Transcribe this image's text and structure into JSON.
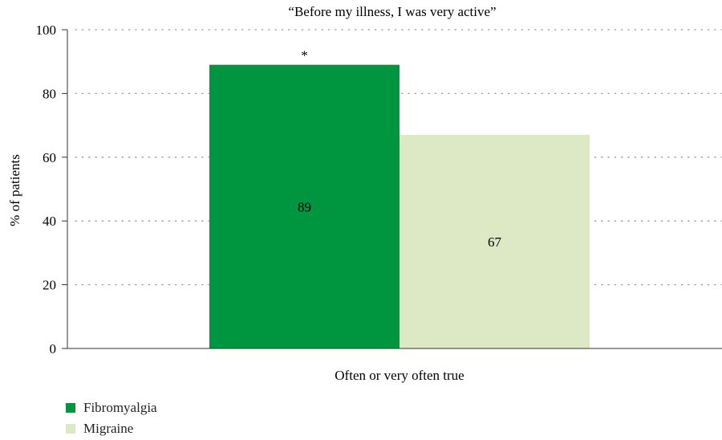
{
  "chart_data": {
    "type": "bar",
    "title": "“Before my illness, I was very active”",
    "categories": [
      "Often or very often true"
    ],
    "xlabel": "Often or very often true",
    "ylabel": "% of patients",
    "ylim": [
      0,
      100
    ],
    "yticks": [
      0,
      20,
      40,
      60,
      80,
      100
    ],
    "grid": true,
    "legend_position": "bottom-left",
    "series": [
      {
        "name": "Fibromyalgia",
        "values": [
          89
        ],
        "color": "#00963f",
        "data_label": "89",
        "annotation": "*"
      },
      {
        "name": "Migraine",
        "values": [
          67
        ],
        "color": "#dde8c4",
        "data_label": "67",
        "annotation": ""
      }
    ]
  }
}
